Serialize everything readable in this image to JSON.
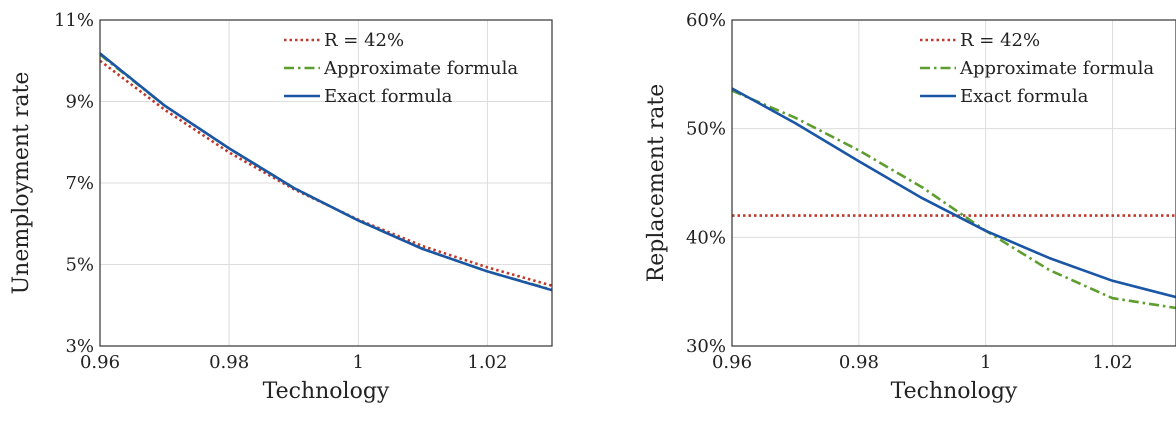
{
  "chart_data": [
    {
      "type": "line",
      "xlabel": "Technology",
      "ylabel": "Unemployment rate",
      "xlim": [
        0.96,
        1.03
      ],
      "ylim": [
        3,
        11
      ],
      "xticks": [
        "0.96",
        "0.98",
        "1",
        "1.02"
      ],
      "xtick_values": [
        0.96,
        0.98,
        1.0,
        1.02
      ],
      "yticks": [
        "3%",
        "5%",
        "7%",
        "9%",
        "11%"
      ],
      "ytick_values": [
        3,
        5,
        7,
        9,
        11
      ],
      "grid": true,
      "legend": "top-right",
      "series": [
        {
          "name": "R = 42%",
          "style": "dotted",
          "color": "#c0392b",
          "x": [
            0.96,
            0.97,
            0.98,
            0.99,
            1.0,
            1.01,
            1.02,
            1.03
          ],
          "y": [
            10.0,
            8.8,
            7.75,
            6.85,
            6.1,
            5.45,
            4.93,
            4.48
          ]
        },
        {
          "name": "Approximate formula",
          "style": "dashdot",
          "color": "#5d9e2e",
          "x": [
            0.96,
            0.97,
            0.98,
            0.99,
            1.0,
            1.01,
            1.02,
            1.03
          ],
          "y": [
            10.15,
            8.9,
            7.85,
            6.88,
            6.08,
            5.38,
            4.83,
            4.38
          ]
        },
        {
          "name": "Exact formula",
          "style": "solid",
          "color": "#1a56a5",
          "x": [
            0.96,
            0.97,
            0.98,
            0.99,
            1.0,
            1.01,
            1.02,
            1.03
          ],
          "y": [
            10.18,
            8.9,
            7.85,
            6.88,
            6.08,
            5.38,
            4.83,
            4.37
          ]
        }
      ]
    },
    {
      "type": "line",
      "xlabel": "Technology",
      "ylabel": "Replacement rate",
      "xlim": [
        0.96,
        1.03
      ],
      "ylim": [
        30,
        60
      ],
      "xticks": [
        "0.96",
        "0.98",
        "1",
        "1.02"
      ],
      "xtick_values": [
        0.96,
        0.98,
        1.0,
        1.02
      ],
      "yticks": [
        "30%",
        "40%",
        "50%",
        "60%"
      ],
      "ytick_values": [
        30,
        40,
        50,
        60
      ],
      "grid": true,
      "legend": "top-right",
      "series": [
        {
          "name": "R = 42%",
          "style": "dotted",
          "color": "#c0392b",
          "x": [
            0.96,
            1.03
          ],
          "y": [
            42,
            42
          ]
        },
        {
          "name": "Approximate formula",
          "style": "dashdot",
          "color": "#5d9e2e",
          "x": [
            0.96,
            0.97,
            0.98,
            0.99,
            1.0,
            1.01,
            1.02,
            1.03
          ],
          "y": [
            53.5,
            51.0,
            48.0,
            44.6,
            40.6,
            37.0,
            34.4,
            33.5
          ]
        },
        {
          "name": "Exact formula",
          "style": "solid",
          "color": "#1a56a5",
          "x": [
            0.96,
            0.97,
            0.98,
            0.99,
            1.0,
            1.01,
            1.02,
            1.03
          ],
          "y": [
            53.7,
            50.5,
            47.0,
            43.6,
            40.6,
            38.1,
            36.0,
            34.5
          ]
        }
      ]
    }
  ]
}
